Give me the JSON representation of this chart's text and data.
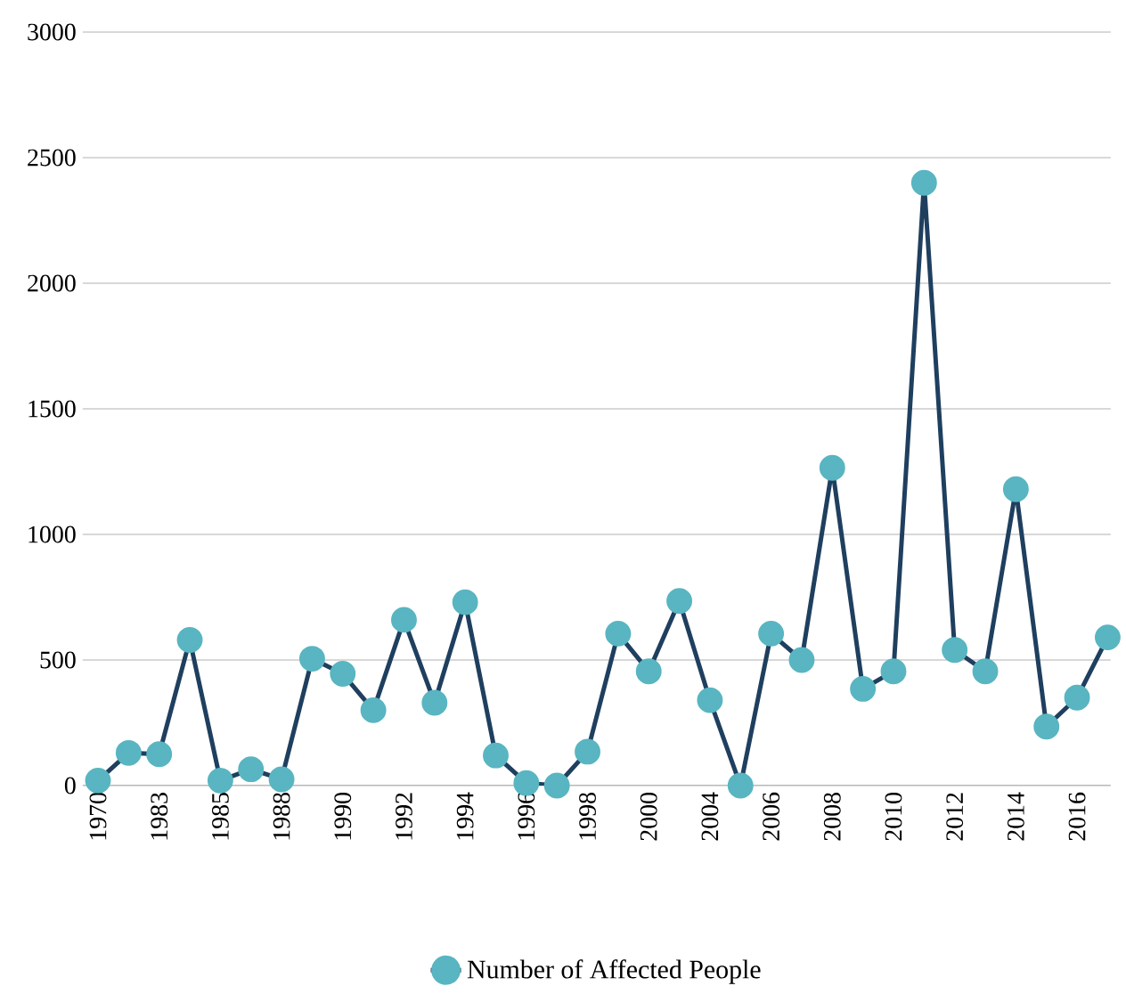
{
  "chart_data": {
    "type": "line",
    "categories": [
      "1970",
      null,
      "1983",
      null,
      "1985",
      null,
      "1988",
      null,
      "1990",
      null,
      "1992",
      null,
      "1994",
      null,
      "1996",
      null,
      "1998",
      null,
      "2000",
      null,
      "2004",
      null,
      "2006",
      null,
      "2008",
      null,
      "2010",
      null,
      "2012",
      null,
      "2014",
      null,
      "2016",
      null
    ],
    "series": [
      {
        "name": "Number of Affected People",
        "color": "#1f3f5f",
        "values": [
          20,
          130,
          125,
          580,
          20,
          65,
          25,
          505,
          445,
          300,
          660,
          330,
          730,
          120,
          10,
          0,
          135,
          605,
          455,
          735,
          340,
          0,
          605,
          500,
          1265,
          385,
          455,
          2400,
          540,
          455,
          1180,
          235,
          350,
          590
        ]
      }
    ],
    "ylim": [
      0,
      3000
    ],
    "yticks": [
      0,
      500,
      1000,
      1500,
      2000,
      2500,
      3000
    ],
    "grid": "y",
    "legend": "bottom",
    "marker": "circle",
    "line_style": "solid"
  }
}
